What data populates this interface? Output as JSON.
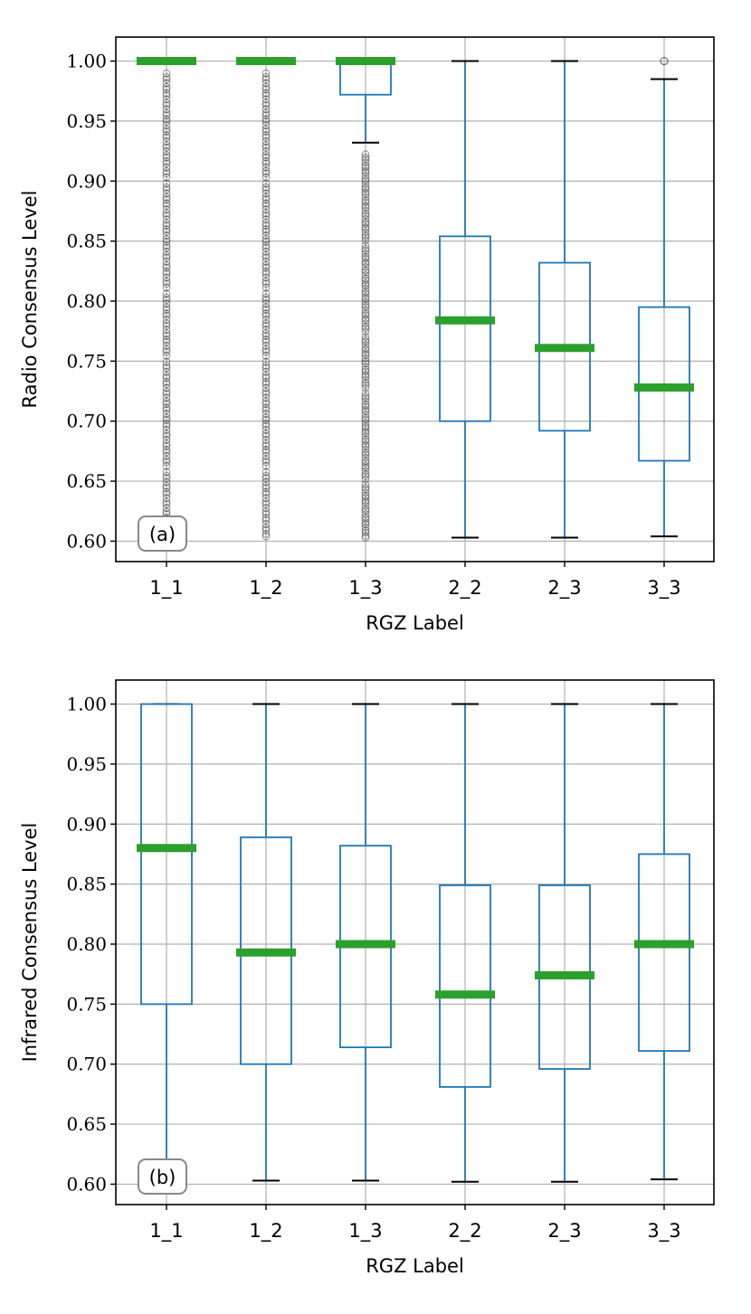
{
  "colors": {
    "box": "#1f77b4",
    "median": "#2ca02c",
    "grid": "#b0b0b0",
    "flier": "#000000",
    "axis": "#000000"
  },
  "chart_data": [
    {
      "type": "box",
      "panel_tag": "(a)",
      "xlabel": "RGZ Label",
      "ylabel": "Radio Consensus Level",
      "ylim": [
        0.583,
        1.02
      ],
      "yticks": [
        0.6,
        0.65,
        0.7,
        0.75,
        0.8,
        0.85,
        0.9,
        0.95,
        1.0
      ],
      "ytick_labels": [
        "0.60",
        "0.65",
        "0.70",
        "0.75",
        "0.80",
        "0.85",
        "0.90",
        "0.95",
        "1.00"
      ],
      "grid": true,
      "categories": [
        "1_1",
        "1_2",
        "1_3",
        "2_2",
        "2_3",
        "3_3"
      ],
      "boxes": [
        {
          "label": "1_1",
          "whislo": 1.0,
          "q1": 1.0,
          "med": 1.0,
          "q3": 1.0,
          "whishi": 1.0,
          "fliers_range": [
            0.604,
            0.993
          ]
        },
        {
          "label": "1_2",
          "whislo": 1.0,
          "q1": 1.0,
          "med": 1.0,
          "q3": 1.0,
          "whishi": 1.0,
          "fliers_range": [
            0.604,
            0.993
          ]
        },
        {
          "label": "1_3",
          "whislo": 0.932,
          "q1": 0.972,
          "med": 1.0,
          "q3": 1.0,
          "whishi": 1.0,
          "fliers_range": [
            0.603,
            0.925
          ]
        },
        {
          "label": "2_2",
          "whislo": 0.603,
          "q1": 0.7,
          "med": 0.784,
          "q3": 0.854,
          "whishi": 1.0
        },
        {
          "label": "2_3",
          "whislo": 0.603,
          "q1": 0.692,
          "med": 0.761,
          "q3": 0.832,
          "whishi": 1.0
        },
        {
          "label": "3_3",
          "whislo": 0.604,
          "q1": 0.667,
          "med": 0.728,
          "q3": 0.795,
          "whishi": 0.985,
          "fliers": [
            1.0
          ]
        }
      ]
    },
    {
      "type": "box",
      "panel_tag": "(b)",
      "xlabel": "RGZ Label",
      "ylabel": "Infrared Consensus Level",
      "ylim": [
        0.583,
        1.02
      ],
      "yticks": [
        0.6,
        0.65,
        0.7,
        0.75,
        0.8,
        0.85,
        0.9,
        0.95,
        1.0
      ],
      "ytick_labels": [
        "0.60",
        "0.65",
        "0.70",
        "0.75",
        "0.80",
        "0.85",
        "0.90",
        "0.95",
        "1.00"
      ],
      "grid": true,
      "categories": [
        "1_1",
        "1_2",
        "1_3",
        "2_2",
        "2_3",
        "3_3"
      ],
      "boxes": [
        {
          "label": "1_1",
          "whislo": 0.6,
          "q1": 0.75,
          "med": 0.88,
          "q3": 1.0,
          "whishi": 1.0
        },
        {
          "label": "1_2",
          "whislo": 0.603,
          "q1": 0.7,
          "med": 0.793,
          "q3": 0.889,
          "whishi": 1.0
        },
        {
          "label": "1_3",
          "whislo": 0.603,
          "q1": 0.714,
          "med": 0.8,
          "q3": 0.882,
          "whishi": 1.0
        },
        {
          "label": "2_2",
          "whislo": 0.602,
          "q1": 0.681,
          "med": 0.758,
          "q3": 0.849,
          "whishi": 1.0
        },
        {
          "label": "2_3",
          "whislo": 0.602,
          "q1": 0.696,
          "med": 0.774,
          "q3": 0.849,
          "whishi": 1.0
        },
        {
          "label": "3_3",
          "whislo": 0.604,
          "q1": 0.711,
          "med": 0.8,
          "q3": 0.875,
          "whishi": 1.0
        }
      ]
    }
  ]
}
